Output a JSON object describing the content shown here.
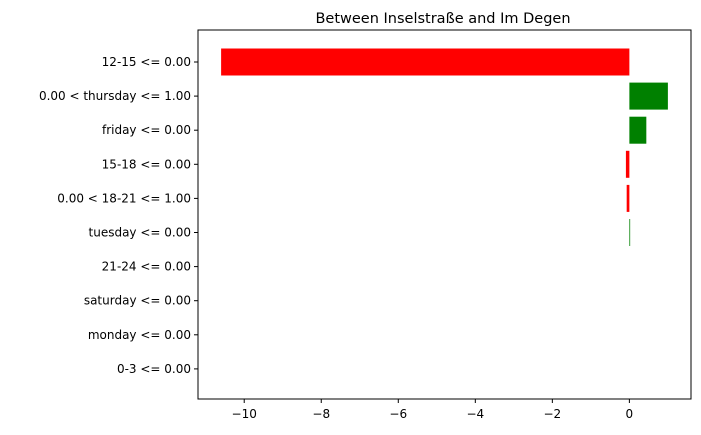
{
  "chart_data": {
    "type": "bar",
    "orientation": "horizontal",
    "title": "Between Inselstraße and Im Degen",
    "xlabel": "",
    "ylabel": "",
    "xlim": [
      -11.2,
      1.6
    ],
    "grid": false,
    "xticks": [
      -10,
      -8,
      -6,
      -4,
      -2,
      0
    ],
    "xtick_labels": [
      "−10",
      "−8",
      "−6",
      "−4",
      "−2",
      "0"
    ],
    "categories": [
      "12-15 <= 0.00",
      "0.00 < thursday <= 1.00",
      "friday <= 0.00",
      "15-18 <= 0.00",
      "0.00 < 18-21 <= 1.00",
      "tuesday <= 0.00",
      "21-24 <= 0.00",
      "saturday <= 0.00",
      "monday <= 0.00",
      "0-3 <= 0.00"
    ],
    "values": [
      -10.6,
      1.0,
      0.44,
      -0.09,
      -0.07,
      0.02,
      0,
      0,
      0,
      0
    ],
    "colors": {
      "negative": "#ff0000",
      "positive": "#008000"
    }
  }
}
